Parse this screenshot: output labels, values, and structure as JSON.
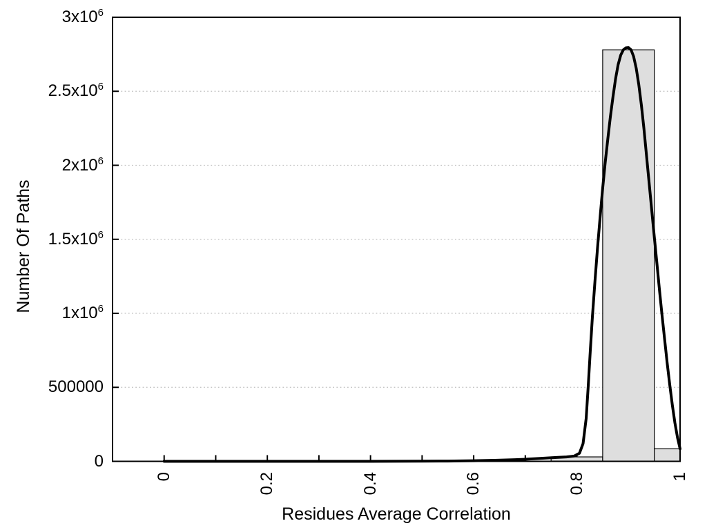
{
  "figure": {
    "background_color": "#ffffff",
    "text_color": "#000000"
  },
  "chart_data": {
    "type": "bar+line",
    "title": "",
    "xlabel": "Residues Average Correlation",
    "ylabel": "Number Of Paths",
    "xlim": [
      -0.1,
      1.0
    ],
    "ylim": [
      0,
      3000000
    ],
    "grid": {
      "horizontal": true,
      "vertical": false,
      "style": "dotted",
      "color": "#bfbfbf"
    },
    "x_axis": {
      "tick_interval": 0.1,
      "tick_values": [
        0,
        0.1,
        0.2,
        0.3,
        0.4,
        0.5,
        0.6,
        0.7,
        0.8,
        0.9,
        1.0
      ],
      "labeled_ticks": [
        {
          "value": 0,
          "label": "0"
        },
        {
          "value": 0.2,
          "label": "0.2"
        },
        {
          "value": 0.4,
          "label": "0.4"
        },
        {
          "value": 0.6,
          "label": "0.6"
        },
        {
          "value": 0.8,
          "label": "0.8"
        },
        {
          "value": 1.0,
          "label": "1"
        }
      ],
      "label_rotation_deg": -90
    },
    "y_axis": {
      "tick_interval": 500000,
      "labeled_ticks": [
        {
          "value": 0,
          "base": "0",
          "exp": ""
        },
        {
          "value": 500000,
          "base": "500000",
          "exp": ""
        },
        {
          "value": 1000000,
          "base": "1x10",
          "exp": "6"
        },
        {
          "value": 1500000,
          "base": "1.5x10",
          "exp": "6"
        },
        {
          "value": 2000000,
          "base": "2x10",
          "exp": "6"
        },
        {
          "value": 2500000,
          "base": "2.5x10",
          "exp": "6"
        },
        {
          "value": 3000000,
          "base": "3x10",
          "exp": "6"
        }
      ],
      "gridline_values": [
        500000,
        1000000,
        1500000,
        2000000,
        2500000
      ]
    },
    "histogram": {
      "bin_edges": [
        0.75,
        0.85,
        0.95,
        1.0
      ],
      "counts": [
        30000,
        2780000,
        85000
      ],
      "fill_color": "#dedede",
      "edge_color": "#000000"
    },
    "fit_curve": {
      "color": "#000000",
      "stroke_width": 4,
      "peak_x": 0.9,
      "peak_y": 2795000,
      "points": [
        [
          0.0,
          0
        ],
        [
          0.05,
          0
        ],
        [
          0.1,
          0
        ],
        [
          0.15,
          0
        ],
        [
          0.2,
          0
        ],
        [
          0.25,
          0
        ],
        [
          0.3,
          0
        ],
        [
          0.35,
          0
        ],
        [
          0.4,
          0
        ],
        [
          0.45,
          500
        ],
        [
          0.5,
          1000
        ],
        [
          0.55,
          2000
        ],
        [
          0.6,
          4000
        ],
        [
          0.64,
          7000
        ],
        [
          0.68,
          11000
        ],
        [
          0.7,
          14000
        ],
        [
          0.72,
          18000
        ],
        [
          0.74,
          22000
        ],
        [
          0.76,
          26000
        ],
        [
          0.78,
          30000
        ],
        [
          0.795,
          36000
        ],
        [
          0.805,
          55000
        ],
        [
          0.812,
          120000
        ],
        [
          0.818,
          290000
        ],
        [
          0.822,
          510000
        ],
        [
          0.826,
          750000
        ],
        [
          0.83,
          975000
        ],
        [
          0.835,
          1215000
        ],
        [
          0.84,
          1440000
        ],
        [
          0.845,
          1650000
        ],
        [
          0.85,
          1845000
        ],
        [
          0.855,
          2020000
        ],
        [
          0.86,
          2180000
        ],
        [
          0.865,
          2330000
        ],
        [
          0.87,
          2465000
        ],
        [
          0.875,
          2585000
        ],
        [
          0.88,
          2680000
        ],
        [
          0.885,
          2745000
        ],
        [
          0.89,
          2780000
        ],
        [
          0.895,
          2793000
        ],
        [
          0.9,
          2795000
        ],
        [
          0.905,
          2780000
        ],
        [
          0.91,
          2735000
        ],
        [
          0.915,
          2655000
        ],
        [
          0.92,
          2545000
        ],
        [
          0.925,
          2405000
        ],
        [
          0.93,
          2245000
        ],
        [
          0.935,
          2065000
        ],
        [
          0.94,
          1880000
        ],
        [
          0.945,
          1700000
        ],
        [
          0.95,
          1520000
        ],
        [
          0.955,
          1340000
        ],
        [
          0.96,
          1160000
        ],
        [
          0.965,
          990000
        ],
        [
          0.97,
          825000
        ],
        [
          0.975,
          665000
        ],
        [
          0.98,
          515000
        ],
        [
          0.985,
          380000
        ],
        [
          0.99,
          260000
        ],
        [
          0.995,
          160000
        ],
        [
          1.0,
          85000
        ]
      ]
    },
    "frame_color": "#000000"
  }
}
